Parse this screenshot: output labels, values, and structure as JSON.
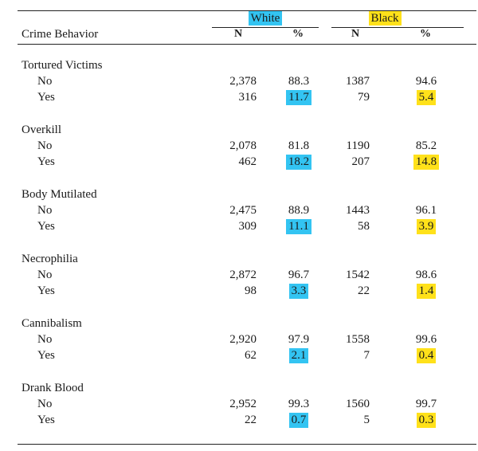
{
  "table": {
    "row_header": "Crime Behavior",
    "groups": [
      {
        "label": "White",
        "highlight": "#33c4f2"
      },
      {
        "label": "Black",
        "highlight": "#ffe11a"
      }
    ],
    "col_n": "N",
    "col_pct": "%",
    "categories": [
      {
        "name": "Tortured Victims",
        "rows": [
          {
            "label": "No",
            "white_n": "2,378",
            "white_pct": "88.3",
            "black_n": "1387",
            "black_pct": "94.6"
          },
          {
            "label": "Yes",
            "white_n": "316",
            "white_pct": "11.7",
            "black_n": "79",
            "black_pct": "5.4"
          }
        ]
      },
      {
        "name": "Overkill",
        "rows": [
          {
            "label": "No",
            "white_n": "2,078",
            "white_pct": "81.8",
            "black_n": "1190",
            "black_pct": "85.2"
          },
          {
            "label": "Yes",
            "white_n": "462",
            "white_pct": "18.2",
            "black_n": "207",
            "black_pct": "14.8"
          }
        ]
      },
      {
        "name": "Body Mutilated",
        "rows": [
          {
            "label": "No",
            "white_n": "2,475",
            "white_pct": "88.9",
            "black_n": "1443",
            "black_pct": "96.1"
          },
          {
            "label": "Yes",
            "white_n": "309",
            "white_pct": "11.1",
            "black_n": "58",
            "black_pct": "3.9"
          }
        ]
      },
      {
        "name": "Necrophilia",
        "rows": [
          {
            "label": "No",
            "white_n": "2,872",
            "white_pct": "96.7",
            "black_n": "1542",
            "black_pct": "98.6"
          },
          {
            "label": "Yes",
            "white_n": "98",
            "white_pct": "3.3",
            "black_n": "22",
            "black_pct": "1.4"
          }
        ]
      },
      {
        "name": "Cannibalism",
        "rows": [
          {
            "label": "No",
            "white_n": "2,920",
            "white_pct": "97.9",
            "black_n": "1558",
            "black_pct": "99.6"
          },
          {
            "label": "Yes",
            "white_n": "62",
            "white_pct": "2.1",
            "black_n": "7",
            "black_pct": "0.4"
          }
        ]
      },
      {
        "name": "Drank Blood",
        "rows": [
          {
            "label": "No",
            "white_n": "2,952",
            "white_pct": "99.3",
            "black_n": "1560",
            "black_pct": "99.7"
          },
          {
            "label": "Yes",
            "white_n": "22",
            "white_pct": "0.7",
            "black_n": "5",
            "black_pct": "0.3"
          }
        ]
      }
    ]
  }
}
